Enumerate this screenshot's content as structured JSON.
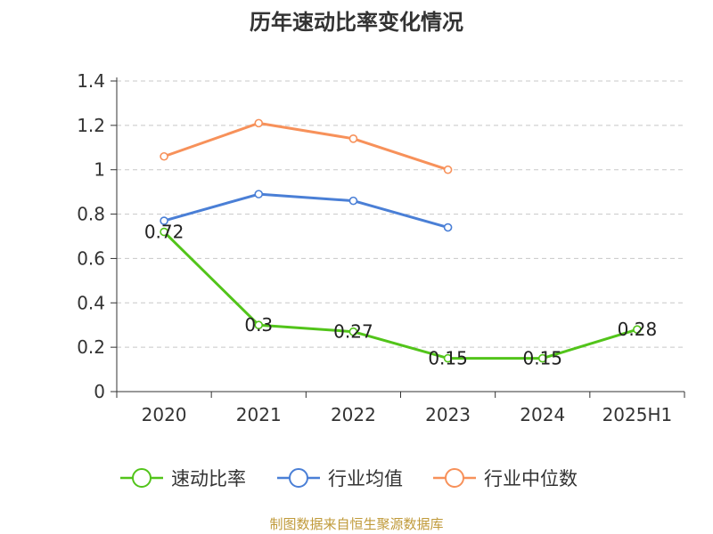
{
  "chart_data": {
    "type": "line",
    "title": "历年速动比率变化情况",
    "categories": [
      "2020",
      "2021",
      "2022",
      "2023",
      "2024",
      "2025H1"
    ],
    "series": [
      {
        "name": "速动比率",
        "color": "#52c41a",
        "values": [
          0.72,
          0.3,
          0.27,
          0.15,
          0.15,
          0.28
        ],
        "labels": [
          "0.72",
          "0.3",
          "0.27",
          "0.15",
          "0.15",
          "0.28"
        ]
      },
      {
        "name": "行业均值",
        "color": "#4a7fd6",
        "values": [
          0.77,
          0.89,
          0.86,
          0.74,
          null,
          null
        ]
      },
      {
        "name": "行业中位数",
        "color": "#f7915a",
        "values": [
          1.06,
          1.21,
          1.14,
          1.0,
          null,
          null
        ]
      }
    ],
    "yticks": [
      "0",
      "0.2",
      "0.4",
      "0.6",
      "0.8",
      "1",
      "1.2",
      "1.4"
    ],
    "ylim": [
      0,
      1.4
    ],
    "grid": true,
    "legend_position": "bottom"
  },
  "source_text": "制图数据来自恒生聚源数据库"
}
